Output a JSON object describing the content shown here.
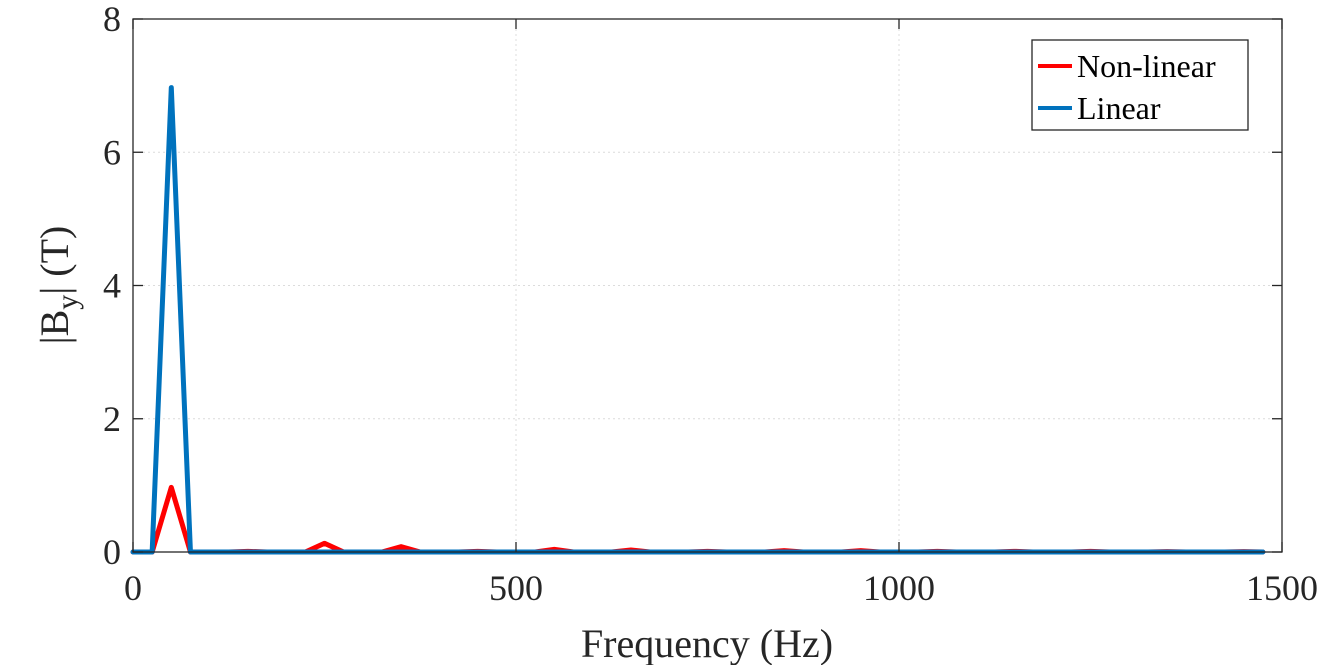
{
  "chart_data": {
    "type": "line",
    "title": "",
    "xlabel": "Frequency (Hz)",
    "ylabel": "|B_y| (T)",
    "ylabel_parts": {
      "pre": "|B",
      "sub": "y",
      "post": "| (T)"
    },
    "xlim": [
      0,
      1500
    ],
    "ylim": [
      0,
      8
    ],
    "xticks": [
      0,
      500,
      1000,
      1500
    ],
    "yticks": [
      0,
      2,
      4,
      6,
      8
    ],
    "grid": true,
    "legend_position": "top-right",
    "series": [
      {
        "name": "Non-linear",
        "color": "#ff0000",
        "x": [
          0,
          25,
          50,
          75,
          100,
          125,
          150,
          175,
          200,
          225,
          250,
          275,
          300,
          325,
          350,
          375,
          400,
          425,
          450,
          475,
          500,
          525,
          550,
          575,
          600,
          625,
          650,
          675,
          700,
          725,
          750,
          775,
          800,
          825,
          850,
          875,
          900,
          925,
          950,
          975,
          1000,
          1025,
          1050,
          1075,
          1100,
          1125,
          1150,
          1175,
          1200,
          1225,
          1250,
          1275,
          1300,
          1325,
          1350,
          1375,
          1400,
          1425,
          1450,
          1475
        ],
        "y": [
          0,
          0,
          0.97,
          0,
          0,
          0,
          0.01,
          0,
          0,
          0,
          0.13,
          0,
          0,
          0,
          0.08,
          0,
          0,
          0,
          0.01,
          0,
          0,
          0,
          0.04,
          0,
          0,
          0,
          0.03,
          0,
          0,
          0,
          0.01,
          0,
          0,
          0,
          0.02,
          0,
          0,
          0,
          0.02,
          0,
          0,
          0,
          0.01,
          0,
          0,
          0,
          0.01,
          0,
          0,
          0,
          0.01,
          0,
          0,
          0,
          0.005,
          0,
          0,
          0,
          0.005,
          0
        ]
      },
      {
        "name": "Linear",
        "color": "#0072bd",
        "x": [
          0,
          25,
          50,
          75,
          100,
          125,
          150,
          175,
          200,
          225,
          250,
          275,
          300,
          325,
          350,
          375,
          400,
          425,
          450,
          475,
          500,
          525,
          550,
          575,
          600,
          625,
          650,
          675,
          700,
          725,
          750,
          775,
          800,
          825,
          850,
          875,
          900,
          925,
          950,
          975,
          1000,
          1025,
          1050,
          1075,
          1100,
          1125,
          1150,
          1175,
          1200,
          1225,
          1250,
          1275,
          1300,
          1325,
          1350,
          1375,
          1400,
          1425,
          1450,
          1475
        ],
        "y": [
          0,
          0,
          6.97,
          0,
          0,
          0,
          0,
          0,
          0,
          0,
          0,
          0,
          0,
          0,
          0,
          0,
          0,
          0,
          0,
          0,
          0,
          0,
          0,
          0,
          0,
          0,
          0,
          0,
          0,
          0,
          0,
          0,
          0,
          0,
          0,
          0,
          0,
          0,
          0,
          0,
          0,
          0,
          0,
          0,
          0,
          0,
          0,
          0,
          0,
          0,
          0,
          0,
          0,
          0,
          0,
          0,
          0,
          0,
          0,
          0
        ]
      }
    ]
  }
}
